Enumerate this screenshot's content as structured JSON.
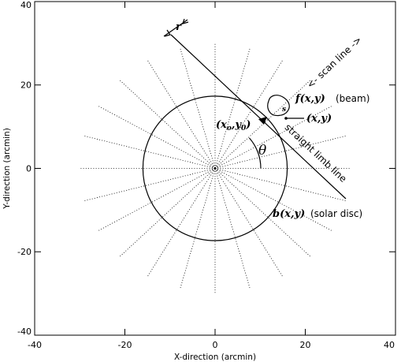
{
  "axes": {
    "xlabel": "X-direction (arcmin)",
    "ylabel": "Y-direction (arcmin)",
    "xlim": [
      -40,
      40
    ],
    "ylim": [
      -40,
      40
    ],
    "xticks": [
      "-40",
      "-20",
      "0",
      "20",
      "40"
    ],
    "yticks": [
      "40",
      "20",
      "0",
      "-20",
      "-40"
    ]
  },
  "labels": {
    "r": "r",
    "scan_line": "<- scan line ->",
    "f": "f(x,y)",
    "beam": "(beam)",
    "s": "s",
    "xy": "(x,y)",
    "x0": "(x",
    "x0_sub": "o",
    "y0_mid": ",y",
    "y0_sub": "0",
    "x0_close": ")",
    "theta": "θ",
    "limb": "straight limb line",
    "b": "b(x,y)",
    "disc": "(solar disc)"
  },
  "geometry_data": {
    "disc_radius_arcmin": 16,
    "ray_length_arcmin": 30,
    "ray_count": 24,
    "limb_point": [
      10.9,
      11.7
    ],
    "limb_line": [
      [
        -9.8,
        31.3
      ],
      [
        29,
        -5.3
      ]
    ]
  }
}
